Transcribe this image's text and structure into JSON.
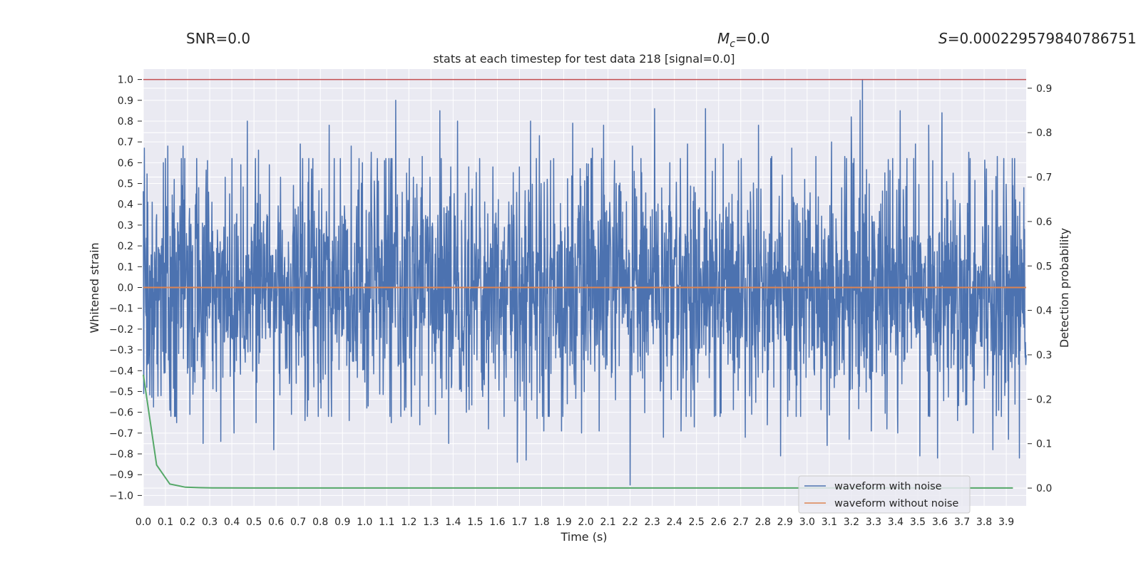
{
  "header": {
    "snr": "SNR=0.0",
    "mc_sym": "M",
    "mc_sub": "c",
    "mc_val": "=0.0",
    "s_sym": "S",
    "s_val": "=0.000229579840786751"
  },
  "chart_data": {
    "type": "line",
    "title": "stats at each timestep for test data 218 [signal=0.0]",
    "xlabel": "Time (s)",
    "ylabel": "Whitened strain",
    "y2label": "Detection probability",
    "xlim": [
      0.0,
      3.99
    ],
    "ylim": [
      -1.05,
      1.05
    ],
    "y2lim": [
      -0.04,
      0.943
    ],
    "xticks": [
      0.0,
      0.1,
      0.2,
      0.3,
      0.4,
      0.5,
      0.6,
      0.7,
      0.8,
      0.9,
      1.0,
      1.1,
      1.2,
      1.3,
      1.4,
      1.5,
      1.6,
      1.7,
      1.8,
      1.9,
      2.0,
      2.1,
      2.2,
      2.3,
      2.4,
      2.5,
      2.6,
      2.7,
      2.8,
      2.9,
      3.0,
      3.1,
      3.2,
      3.3,
      3.4,
      3.5,
      3.6,
      3.7,
      3.8,
      3.9
    ],
    "xtick_labels": [
      "0.0",
      "0.1",
      "0.2",
      "0.3",
      "0.4",
      "0.5",
      "0.6",
      "0.7",
      "0.8",
      "0.9",
      "1.0",
      "1.1",
      "1.2",
      "1.3",
      "1.4",
      "1.5",
      "1.6",
      "1.7",
      "1.8",
      "1.9",
      "2.0",
      "2.1",
      "2.2",
      "2.3",
      "2.4",
      "2.5",
      "2.6",
      "2.7",
      "2.8",
      "2.9",
      "3.0",
      "3.1",
      "3.2",
      "3.3",
      "3.4",
      "3.5",
      "3.6",
      "3.7",
      "3.8",
      "3.9"
    ],
    "yticks": [
      1.0,
      0.9,
      0.8,
      0.7,
      0.6,
      0.5,
      0.4,
      0.3,
      0.2,
      0.1,
      0.0,
      -0.1,
      -0.2,
      -0.3,
      -0.4,
      -0.5,
      -0.6,
      -0.7,
      -0.8,
      -0.9,
      -1.0
    ],
    "ytick_labels": [
      "1.0",
      "0.9",
      "0.8",
      "0.7",
      "0.6",
      "0.5",
      "0.4",
      "0.3",
      "0.2",
      "0.1",
      "0.0",
      "−0.1",
      "−0.2",
      "−0.3",
      "−0.4",
      "−0.5",
      "−0.6",
      "−0.7",
      "−0.8",
      "−0.9",
      "−1.0"
    ],
    "y2ticks": [
      0.9,
      0.8,
      0.7,
      0.6,
      0.5,
      0.4,
      0.3,
      0.2,
      0.1,
      0.0
    ],
    "y2tick_labels": [
      "0.9",
      "0.8",
      "0.7",
      "0.6",
      "0.5",
      "0.4",
      "0.3",
      "0.2",
      "0.1",
      "0.0"
    ],
    "grid": true,
    "legend_position": "lower right",
    "series": [
      {
        "name": "waveform with noise",
        "color": "#4c72b0",
        "kind": "noise",
        "amplitude": 0.27,
        "x_range": [
          0.0,
          3.99
        ]
      },
      {
        "name": "waveform without noise",
        "color": "#dd8452",
        "x": [
          0.0,
          3.99
        ],
        "y": [
          0.0,
          0.0
        ]
      }
    ],
    "probability_series": {
      "color": "#55a868",
      "x": [
        0.0,
        0.06,
        0.12,
        0.19,
        0.25,
        0.31,
        0.5,
        1.0,
        2.0,
        3.0,
        3.93
      ],
      "y": [
        0.255,
        0.052,
        0.009,
        0.002,
        0.001,
        0.0005,
        0.0003,
        0.0003,
        0.0003,
        0.0003,
        0.0003
      ]
    },
    "threshold_line": {
      "color": "#c44e52",
      "y": 1.0
    },
    "peaks_up": [
      [
        0.005,
        0.67
      ],
      [
        0.02,
        0.41
      ],
      [
        0.04,
        0.41
      ],
      [
        0.06,
        0.35
      ],
      [
        0.09,
        0.6
      ],
      [
        0.11,
        0.68
      ],
      [
        0.14,
        0.52
      ],
      [
        0.15,
        0.63
      ],
      [
        0.18,
        0.68
      ],
      [
        0.21,
        0.54
      ],
      [
        0.25,
        0.48
      ],
      [
        0.29,
        0.61
      ],
      [
        0.31,
        0.41
      ],
      [
        0.37,
        0.53
      ],
      [
        0.39,
        0.45
      ],
      [
        0.41,
        0.63
      ],
      [
        0.44,
        0.59
      ],
      [
        0.47,
        0.8
      ],
      [
        0.52,
        0.66
      ],
      [
        0.57,
        0.59
      ],
      [
        0.62,
        0.53
      ],
      [
        0.71,
        0.69
      ],
      [
        0.76,
        0.57
      ],
      [
        0.84,
        0.78
      ],
      [
        0.89,
        0.62
      ],
      [
        0.94,
        0.68
      ],
      [
        0.99,
        0.6
      ],
      [
        1.03,
        0.65
      ],
      [
        1.09,
        0.61
      ],
      [
        1.14,
        0.9
      ],
      [
        1.19,
        0.55
      ],
      [
        1.26,
        0.63
      ],
      [
        1.34,
        0.85
      ],
      [
        1.39,
        0.58
      ],
      [
        1.42,
        0.8
      ],
      [
        1.47,
        0.58
      ],
      [
        1.52,
        0.62
      ],
      [
        1.58,
        0.58
      ],
      [
        1.63,
        0.58
      ],
      [
        1.7,
        0.58
      ],
      [
        1.75,
        0.8
      ],
      [
        1.79,
        0.73
      ],
      [
        1.84,
        0.61
      ],
      [
        1.94,
        0.79
      ],
      [
        2.03,
        0.67
      ],
      [
        2.08,
        0.78
      ],
      [
        2.13,
        0.61
      ],
      [
        2.21,
        0.68
      ],
      [
        2.31,
        0.86
      ],
      [
        2.38,
        0.6
      ],
      [
        2.46,
        0.69
      ],
      [
        2.54,
        0.86
      ],
      [
        2.62,
        0.69
      ],
      [
        2.69,
        0.61
      ],
      [
        2.78,
        0.78
      ],
      [
        2.84,
        0.63
      ],
      [
        2.93,
        0.67
      ],
      [
        3.04,
        0.63
      ],
      [
        3.11,
        0.7
      ],
      [
        3.17,
        0.63
      ],
      [
        3.2,
        0.82
      ],
      [
        3.24,
        0.9
      ],
      [
        3.25,
        1.0
      ],
      [
        3.36,
        0.64
      ],
      [
        3.42,
        0.85
      ],
      [
        3.49,
        0.69
      ],
      [
        3.55,
        0.78
      ],
      [
        3.61,
        0.84
      ],
      [
        3.66,
        0.55
      ],
      [
        3.73,
        0.65
      ],
      [
        3.81,
        0.57
      ],
      [
        3.86,
        0.63
      ],
      [
        3.93,
        0.49
      ],
      [
        3.98,
        0.48
      ]
    ],
    "peaks_down": [
      [
        0.015,
        -0.48
      ],
      [
        0.03,
        -0.38
      ],
      [
        0.08,
        -0.52
      ],
      [
        0.12,
        -0.59
      ],
      [
        0.15,
        -0.65
      ],
      [
        0.21,
        -0.61
      ],
      [
        0.27,
        -0.75
      ],
      [
        0.35,
        -0.74
      ],
      [
        0.41,
        -0.7
      ],
      [
        0.51,
        -0.65
      ],
      [
        0.59,
        -0.78
      ],
      [
        0.67,
        -0.61
      ],
      [
        0.73,
        -0.64
      ],
      [
        0.85,
        -0.62
      ],
      [
        0.93,
        -0.64
      ],
      [
        1.01,
        -0.58
      ],
      [
        1.12,
        -0.65
      ],
      [
        1.18,
        -0.59
      ],
      [
        1.25,
        -0.66
      ],
      [
        1.32,
        -0.61
      ],
      [
        1.38,
        -0.75
      ],
      [
        1.46,
        -0.6
      ],
      [
        1.56,
        -0.68
      ],
      [
        1.63,
        -0.62
      ],
      [
        1.69,
        -0.84
      ],
      [
        1.73,
        -0.83
      ],
      [
        1.78,
        -0.63
      ],
      [
        1.81,
        -0.69
      ],
      [
        1.89,
        -0.69
      ],
      [
        1.98,
        -0.7
      ],
      [
        2.06,
        -0.69
      ],
      [
        2.2,
        -0.95
      ],
      [
        2.35,
        -0.72
      ],
      [
        2.43,
        -0.69
      ],
      [
        2.49,
        -0.67
      ],
      [
        2.58,
        -0.62
      ],
      [
        2.72,
        -0.72
      ],
      [
        2.82,
        -0.66
      ],
      [
        2.88,
        -0.81
      ],
      [
        2.97,
        -0.62
      ],
      [
        3.09,
        -0.76
      ],
      [
        3.19,
        -0.73
      ],
      [
        3.29,
        -0.69
      ],
      [
        3.36,
        -0.68
      ],
      [
        3.41,
        -0.7
      ],
      [
        3.51,
        -0.81
      ],
      [
        3.59,
        -0.82
      ],
      [
        3.68,
        -0.64
      ],
      [
        3.75,
        -0.7
      ],
      [
        3.84,
        -0.78
      ],
      [
        3.91,
        -0.73
      ],
      [
        3.96,
        -0.82
      ]
    ]
  }
}
